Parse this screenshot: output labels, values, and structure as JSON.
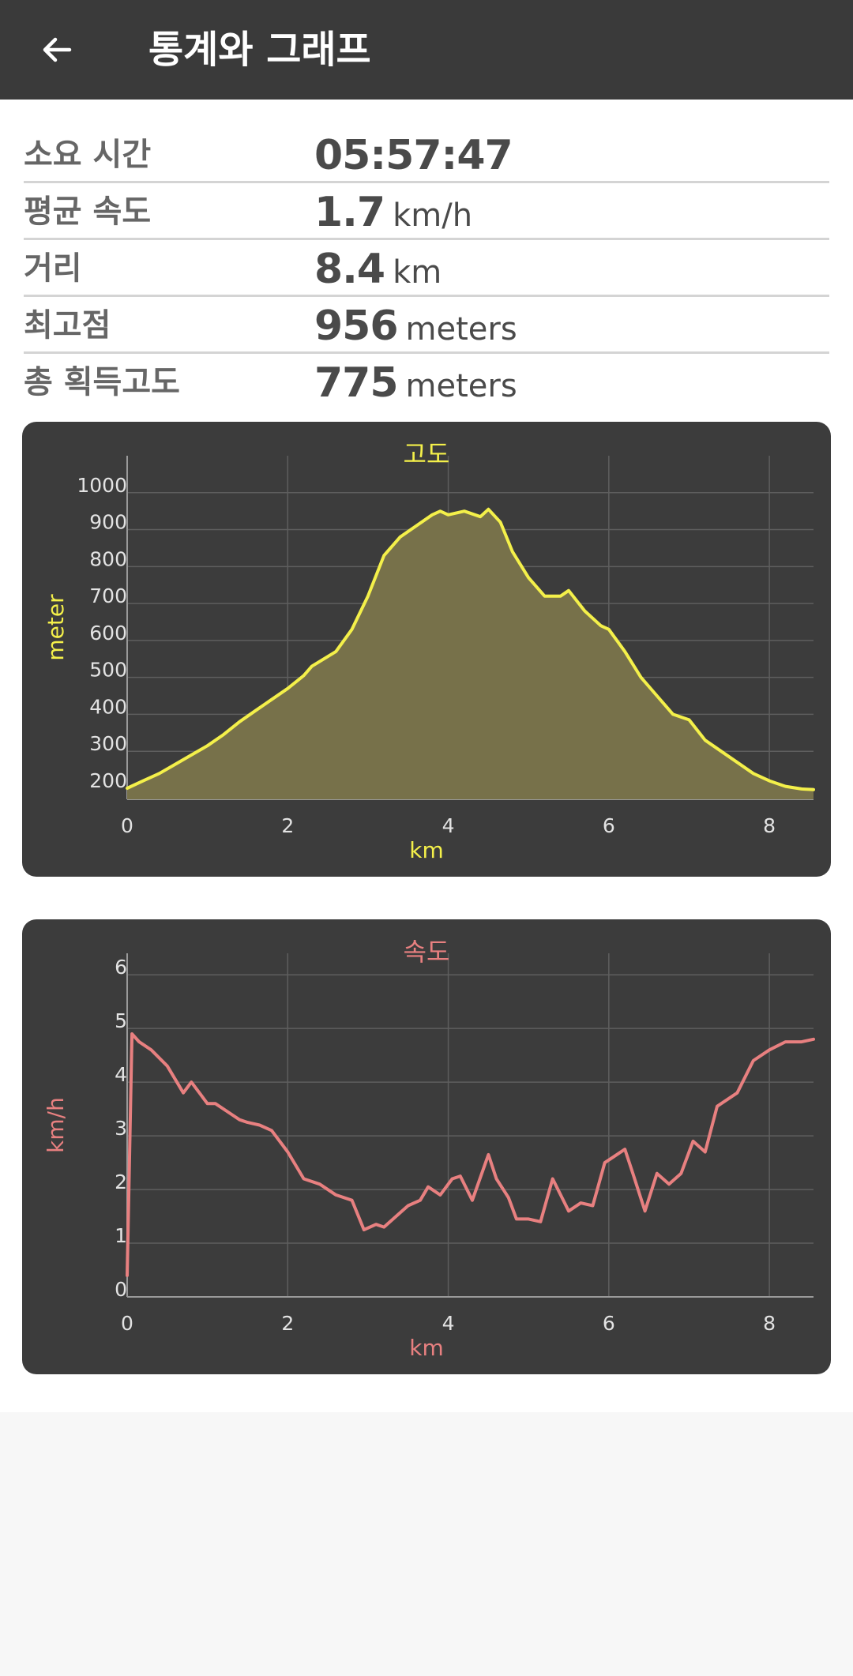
{
  "appbar": {
    "title": "통계와 그래프",
    "back_icon": "arrow-left-icon"
  },
  "stats": [
    {
      "label": "소요 시간",
      "value": "05:57:47",
      "unit": ""
    },
    {
      "label": "평균 속도",
      "value": "1.7",
      "unit": "km/h"
    },
    {
      "label": "거리",
      "value": "8.4",
      "unit": "km"
    },
    {
      "label": "최고점",
      "value": "956",
      "unit": "meters"
    },
    {
      "label": "총 획득고도",
      "value": "775",
      "unit": "meters"
    }
  ],
  "chart_data": [
    {
      "type": "area",
      "title": "고도",
      "xlabel": "km",
      "ylabel": "meter",
      "xlim": [
        0,
        8.55
      ],
      "ylim": [
        170,
        1100
      ],
      "xticks": [
        "0",
        "2",
        "4",
        "6",
        "8"
      ],
      "yticks": [
        "200",
        "300",
        "400",
        "500",
        "600",
        "700",
        "800",
        "900",
        "1000"
      ],
      "grid": true,
      "color": "#f4f04a",
      "fill": "#77714a",
      "x": [
        0,
        0.2,
        0.4,
        0.6,
        0.8,
        1.0,
        1.2,
        1.4,
        1.6,
        1.8,
        2.0,
        2.2,
        2.3,
        2.6,
        2.8,
        3.0,
        3.2,
        3.4,
        3.6,
        3.8,
        3.9,
        4.0,
        4.2,
        4.4,
        4.5,
        4.65,
        4.8,
        5.0,
        5.2,
        5.4,
        5.5,
        5.7,
        5.9,
        6.0,
        6.2,
        6.4,
        6.6,
        6.8,
        7.0,
        7.2,
        7.4,
        7.6,
        7.8,
        8.0,
        8.2,
        8.4,
        8.55
      ],
      "y": [
        200,
        220,
        240,
        265,
        290,
        315,
        345,
        380,
        410,
        440,
        470,
        505,
        530,
        570,
        630,
        720,
        830,
        880,
        910,
        940,
        950,
        940,
        950,
        935,
        955,
        920,
        840,
        770,
        720,
        720,
        735,
        680,
        640,
        630,
        570,
        500,
        450,
        400,
        385,
        330,
        300,
        270,
        240,
        220,
        205,
        198,
        196
      ]
    },
    {
      "type": "line",
      "title": "속도",
      "xlabel": "km",
      "ylabel": "km/h",
      "xlim": [
        0,
        8.55
      ],
      "ylim": [
        0,
        6.4
      ],
      "xticks": [
        "0",
        "2",
        "4",
        "6",
        "8"
      ],
      "yticks": [
        "0",
        "1",
        "2",
        "3",
        "4",
        "5",
        "6"
      ],
      "grid": true,
      "color": "#e88080",
      "x": [
        0,
        0.06,
        0.15,
        0.3,
        0.5,
        0.7,
        0.8,
        0.9,
        1.0,
        1.1,
        1.3,
        1.4,
        1.5,
        1.65,
        1.8,
        2.0,
        2.2,
        2.4,
        2.6,
        2.8,
        2.95,
        3.1,
        3.2,
        3.5,
        3.65,
        3.75,
        3.9,
        4.05,
        4.15,
        4.3,
        4.5,
        4.6,
        4.75,
        4.85,
        5.0,
        5.15,
        5.3,
        5.5,
        5.65,
        5.8,
        5.95,
        6.05,
        6.2,
        6.3,
        6.45,
        6.6,
        6.75,
        6.9,
        7.05,
        7.2,
        7.35,
        7.6,
        7.8,
        8.0,
        8.2,
        8.4,
        8.55
      ],
      "y": [
        0.4,
        4.9,
        4.75,
        4.6,
        4.3,
        3.8,
        4.0,
        3.8,
        3.6,
        3.6,
        3.4,
        3.3,
        3.25,
        3.2,
        3.1,
        2.7,
        2.2,
        2.1,
        1.9,
        1.8,
        1.25,
        1.35,
        1.3,
        1.7,
        1.8,
        2.05,
        1.9,
        2.2,
        2.25,
        1.8,
        2.65,
        2.2,
        1.85,
        1.45,
        1.45,
        1.4,
        2.2,
        1.6,
        1.75,
        1.7,
        2.5,
        2.6,
        2.75,
        2.3,
        1.6,
        2.3,
        2.1,
        2.3,
        2.9,
        2.7,
        3.55,
        3.8,
        4.4,
        4.6,
        4.75,
        4.75,
        4.8
      ]
    }
  ]
}
